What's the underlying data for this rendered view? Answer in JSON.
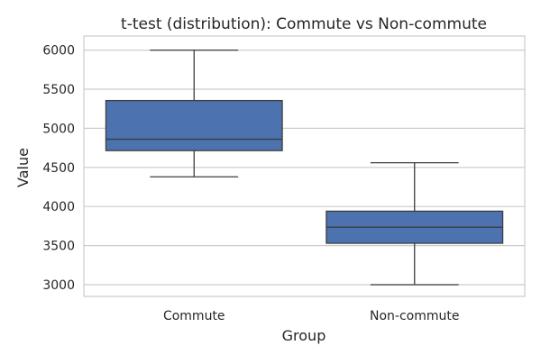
{
  "chart_data": {
    "type": "box",
    "title": "t-test (distribution): Commute vs Non-commute",
    "xlabel": "Group",
    "ylabel": "Value",
    "categories": [
      "Commute",
      "Non-commute"
    ],
    "boxes": [
      {
        "name": "Commute",
        "min": 4380,
        "q1": 4715,
        "median": 4860,
        "q3": 5355,
        "max": 6000
      },
      {
        "name": "Non-commute",
        "min": 3000,
        "q1": 3530,
        "median": 3735,
        "q3": 3940,
        "max": 4560
      }
    ],
    "yticks": [
      3000,
      3500,
      4000,
      4500,
      5000,
      5500,
      6000
    ],
    "ylim": [
      2850,
      6180
    ],
    "grid": "horizontal",
    "colors": {
      "box_fill": "#4c72b0",
      "line": "#3d3d3d",
      "grid": "#cccccc",
      "frame": "#cccccc"
    }
  }
}
